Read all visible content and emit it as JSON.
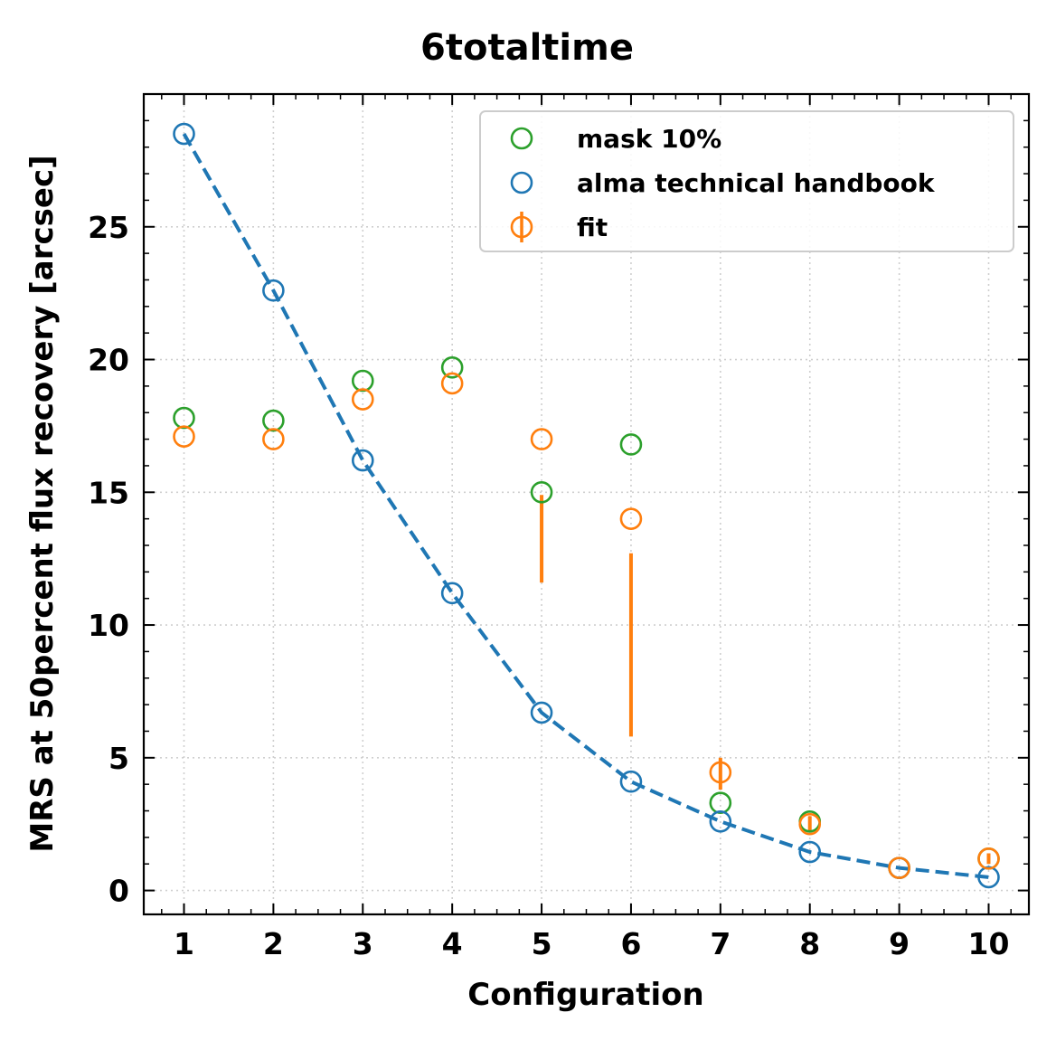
{
  "chart_data": {
    "type": "scatter",
    "title": "6totaltime",
    "xlabel": "Configuration",
    "ylabel": "MRS at 50percent flux recovery [arcsec]",
    "xlim": [
      0.55,
      10.45
    ],
    "ylim": [
      -0.9,
      30.0
    ],
    "xticks": [
      1,
      2,
      3,
      4,
      5,
      6,
      7,
      8,
      9,
      10
    ],
    "yticks": [
      0,
      5,
      10,
      15,
      20,
      25
    ],
    "grid": true,
    "legend_position": "top-right",
    "series": [
      {
        "name": "mask 10%",
        "marker": "open-circle",
        "color": "#2ca02c",
        "x": [
          1,
          2,
          3,
          4,
          5,
          6,
          7,
          8,
          9,
          10
        ],
        "y": [
          17.8,
          17.7,
          19.2,
          19.7,
          15.0,
          16.8,
          3.3,
          2.6,
          0.85,
          1.2
        ]
      },
      {
        "name": "alma technical handbook",
        "marker": "open-circle",
        "color": "#1f77b4",
        "line": "dashed",
        "x": [
          1,
          2,
          3,
          4,
          5,
          6,
          7,
          8,
          9,
          10
        ],
        "y": [
          28.5,
          22.6,
          16.2,
          11.2,
          6.7,
          4.1,
          2.6,
          1.45,
          0.85,
          0.5
        ]
      },
      {
        "name": "fit",
        "marker": "open-circle-errorbar",
        "color": "#ff7f0e",
        "x": [
          1,
          2,
          3,
          4,
          5,
          6,
          7,
          8,
          9,
          10
        ],
        "y": [
          17.1,
          17.0,
          18.5,
          19.1,
          17.0,
          14.0,
          4.45,
          2.5,
          0.85,
          1.2
        ],
        "yerr_low": [
          null,
          null,
          null,
          null,
          11.6,
          5.8,
          3.8,
          2.2,
          null,
          1.0
        ],
        "yerr_high": [
          null,
          null,
          null,
          null,
          14.9,
          12.7,
          5.0,
          2.8,
          null,
          1.4
        ]
      }
    ]
  }
}
